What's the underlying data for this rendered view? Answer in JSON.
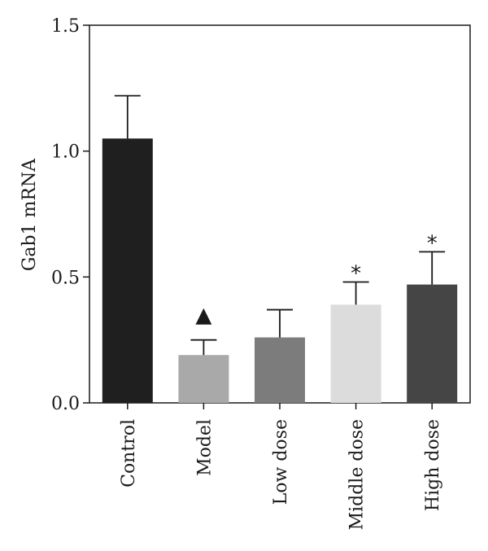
{
  "chart_data": {
    "type": "bar",
    "title": "",
    "xlabel": "",
    "ylabel": "Gab1 mRNA",
    "ylim": [
      0,
      1.5
    ],
    "yticks": [
      0.0,
      0.5,
      1.0,
      1.5
    ],
    "ytick_labels": [
      "0.0",
      "0.5",
      "1.0",
      "1.5"
    ],
    "grid": false,
    "categories": [
      "Control",
      "Model",
      "Low dose",
      "Middle dose",
      "High dose"
    ],
    "values": [
      1.05,
      0.19,
      0.26,
      0.39,
      0.47
    ],
    "errors": [
      0.17,
      0.06,
      0.11,
      0.09,
      0.13
    ],
    "colors": [
      "#1f1f1f",
      "#a9a9a9",
      "#7c7c7c",
      "#dcdcdc",
      "#454545"
    ],
    "annotations": [
      {
        "category": "Model",
        "text": "▲"
      },
      {
        "category": "Middle dose",
        "text": "*"
      },
      {
        "category": "High dose",
        "text": "*"
      }
    ]
  }
}
